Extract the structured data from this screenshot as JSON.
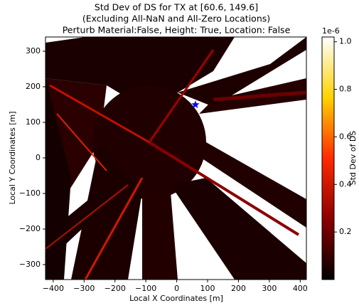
{
  "chart_data": {
    "type": "heatmap",
    "title": "Std Dev of DS for TX at [60.6, 149.6]",
    "subtitle": [
      "(Excluding All-NaN and All-Zero Locations)",
      "Perturb Material:False, Height: True, Location: False"
    ],
    "x_label": "Local X Coordinates [m]",
    "y_label": "Local Y Coordinates [m]",
    "xlim": [
      -425,
      420
    ],
    "xticks": [
      {
        "value": -400,
        "label": "−400"
      },
      {
        "value": -300,
        "label": "−300"
      },
      {
        "value": -200,
        "label": "−200"
      },
      {
        "value": -100,
        "label": "−100"
      },
      0,
      100,
      200,
      300,
      400
    ],
    "ylim": [
      -342,
      340
    ],
    "yticks": [
      {
        "value": -300,
        "label": "−300"
      },
      {
        "value": -200,
        "label": "−200"
      },
      {
        "value": -100,
        "label": "−100"
      },
      0,
      100,
      200,
      300
    ],
    "marker": {
      "x": 60.6,
      "y": 149.6,
      "color": "#0000ff"
    },
    "colorbar": {
      "label": "Std Dev of DS",
      "offset_label": "1e-6",
      "lim": [
        0,
        1.02
      ],
      "ticks": [
        0.2,
        0.4,
        0.6,
        0.8,
        {
          "value": 1,
          "label": "1.0"
        }
      ],
      "colormap": [
        "#000000",
        "#8b0000",
        "#ff2a00",
        "#ffd200",
        "#ffffff"
      ]
    }
  }
}
